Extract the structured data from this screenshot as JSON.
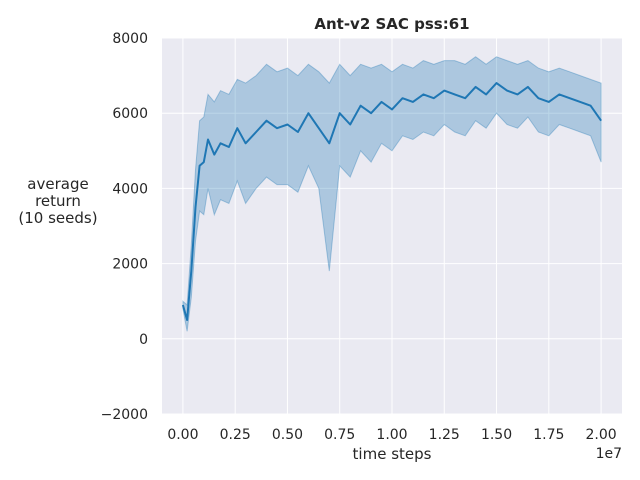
{
  "chart_data": {
    "type": "line",
    "title": "Ant-v2 SAC pss:61",
    "xlabel": "time steps",
    "ylabel": [
      "average",
      "return",
      "(10 seeds)"
    ],
    "x_offset_label": "1e7",
    "xlim": [
      -0.1,
      2.1
    ],
    "ylim": [
      -2000,
      8000
    ],
    "x_ticks": [
      0.0,
      0.25,
      0.5,
      0.75,
      1.0,
      1.25,
      1.5,
      1.75,
      2.0
    ],
    "x_tick_labels": [
      "0.00",
      "0.25",
      "0.50",
      "0.75",
      "1.00",
      "1.25",
      "1.50",
      "1.75",
      "2.00"
    ],
    "y_ticks": [
      -2000,
      0,
      2000,
      4000,
      6000,
      8000
    ],
    "y_tick_labels": [
      "−2000",
      "0",
      "2000",
      "4000",
      "6000",
      "8000"
    ],
    "grid": true,
    "colors": {
      "line": "#1f77b4",
      "band": "#1f77b4",
      "background": "#eaeaf2",
      "grid": "#ffffff"
    },
    "series": [
      {
        "x": [
          0.0,
          0.02,
          0.04,
          0.06,
          0.08,
          0.1,
          0.12,
          0.15,
          0.18,
          0.22,
          0.26,
          0.3,
          0.35,
          0.4,
          0.45,
          0.5,
          0.55,
          0.6,
          0.65,
          0.7,
          0.75,
          0.8,
          0.85,
          0.9,
          0.95,
          1.0,
          1.05,
          1.1,
          1.15,
          1.2,
          1.25,
          1.3,
          1.35,
          1.4,
          1.45,
          1.5,
          1.55,
          1.6,
          1.65,
          1.7,
          1.75,
          1.8,
          1.85,
          1.9,
          1.95,
          2.0
        ],
        "mean": [
          900,
          500,
          1800,
          3500,
          4600,
          4700,
          5300,
          4900,
          5200,
          5100,
          5600,
          5200,
          5500,
          5800,
          5600,
          5700,
          5500,
          6000,
          5600,
          5200,
          6000,
          5700,
          6200,
          6000,
          6300,
          6100,
          6400,
          6300,
          6500,
          6400,
          6600,
          6500,
          6400,
          6700,
          6500,
          6800,
          6600,
          6500,
          6700,
          6400,
          6300,
          6500,
          6400,
          6300,
          6200,
          5800
        ],
        "upper": [
          1000,
          900,
          2500,
          4500,
          5800,
          5900,
          6500,
          6300,
          6600,
          6500,
          6900,
          6800,
          7000,
          7300,
          7100,
          7200,
          7000,
          7300,
          7100,
          6800,
          7300,
          7000,
          7300,
          7200,
          7300,
          7100,
          7300,
          7200,
          7400,
          7300,
          7400,
          7400,
          7300,
          7500,
          7300,
          7500,
          7400,
          7300,
          7400,
          7200,
          7100,
          7200,
          7100,
          7000,
          6900,
          6800
        ],
        "lower": [
          800,
          200,
          1100,
          2600,
          3400,
          3300,
          4000,
          3300,
          3700,
          3600,
          4200,
          3600,
          4000,
          4300,
          4100,
          4100,
          3900,
          4600,
          4000,
          1800,
          4600,
          4300,
          5000,
          4700,
          5200,
          5000,
          5400,
          5300,
          5500,
          5400,
          5700,
          5500,
          5400,
          5800,
          5600,
          6000,
          5700,
          5600,
          5900,
          5500,
          5400,
          5700,
          5600,
          5500,
          5400,
          4700
        ]
      }
    ]
  }
}
